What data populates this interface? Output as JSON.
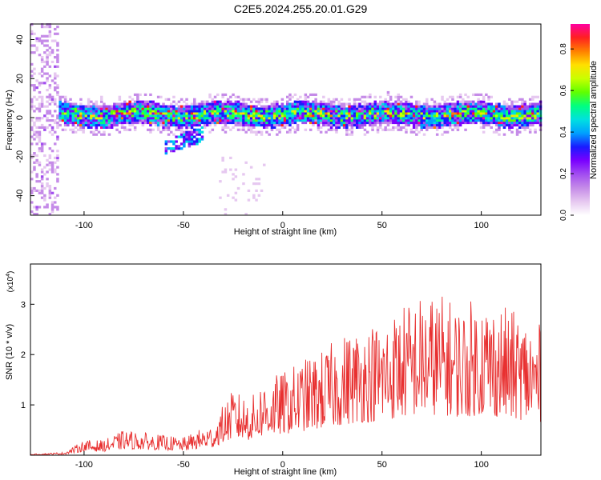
{
  "title": "C2E5.2024.255.20.01.G29",
  "colors": {
    "snr_line": "#e83030",
    "colormap": [
      "#ffffff",
      "#e6c8f0",
      "#c58be8",
      "#a24df0",
      "#7a00ff",
      "#1a1aff",
      "#00a0ff",
      "#00e0e0",
      "#00ff80",
      "#60ff00",
      "#c8ff00",
      "#ffe000",
      "#ff8000",
      "#ff2020",
      "#ff00a0"
    ]
  },
  "chart_data": [
    {
      "type": "heatmap",
      "xlabel": "Height of straight line (km)",
      "ylabel": "Frequency (Hz)",
      "xlim": [
        -127,
        130
      ],
      "ylim": [
        -50,
        48
      ],
      "xticks": [
        -100,
        -50,
        0,
        50,
        100
      ],
      "yticks": [
        -40,
        -20,
        0,
        20,
        40
      ],
      "grid": false,
      "description_of_data": {
        "band_center_hz": 1,
        "band_halfwidth_hz": 5,
        "band_start_km": -113,
        "dip_region_km": [
          -60,
          -40
        ],
        "dip_freq_hz": -12,
        "noisy_region_km": [
          -127,
          -113
        ]
      }
    },
    {
      "type": "line",
      "xlabel": "Height of straight line (km)",
      "ylabel": "SNR (10 * v/v)",
      "y_multiplier": "(x10",
      "y_multiplier_exp": "4",
      "xlim": [
        -127,
        130
      ],
      "ylim": [
        0,
        3.8
      ],
      "xticks": [
        -100,
        -50,
        0,
        50,
        100
      ],
      "yticks": [
        1,
        2,
        3
      ],
      "grid": false,
      "envelope": {
        "x": [
          -127,
          -110,
          -100,
          -90,
          -80,
          -70,
          -60,
          -50,
          -40,
          -35,
          -30,
          -25,
          -20,
          -15,
          -10,
          0,
          10,
          20,
          30,
          40,
          50,
          60,
          70,
          80,
          90,
          100,
          110,
          120,
          130
        ],
        "y": [
          0.02,
          0.06,
          0.3,
          0.3,
          0.5,
          0.45,
          0.4,
          0.35,
          0.55,
          0.6,
          1.0,
          1.3,
          1.2,
          1.2,
          1.5,
          1.65,
          1.9,
          2.1,
          2.4,
          2.6,
          2.7,
          3.0,
          3.2,
          3.2,
          3.0,
          3.2,
          3.0,
          2.8,
          2.6
        ]
      }
    }
  ],
  "colorbar": {
    "label": "Normalized spectral amplitude",
    "range": [
      0,
      0.92
    ],
    "ticks": [
      "0.0",
      "0.2",
      "0.4",
      "0.6",
      "0.8"
    ]
  }
}
